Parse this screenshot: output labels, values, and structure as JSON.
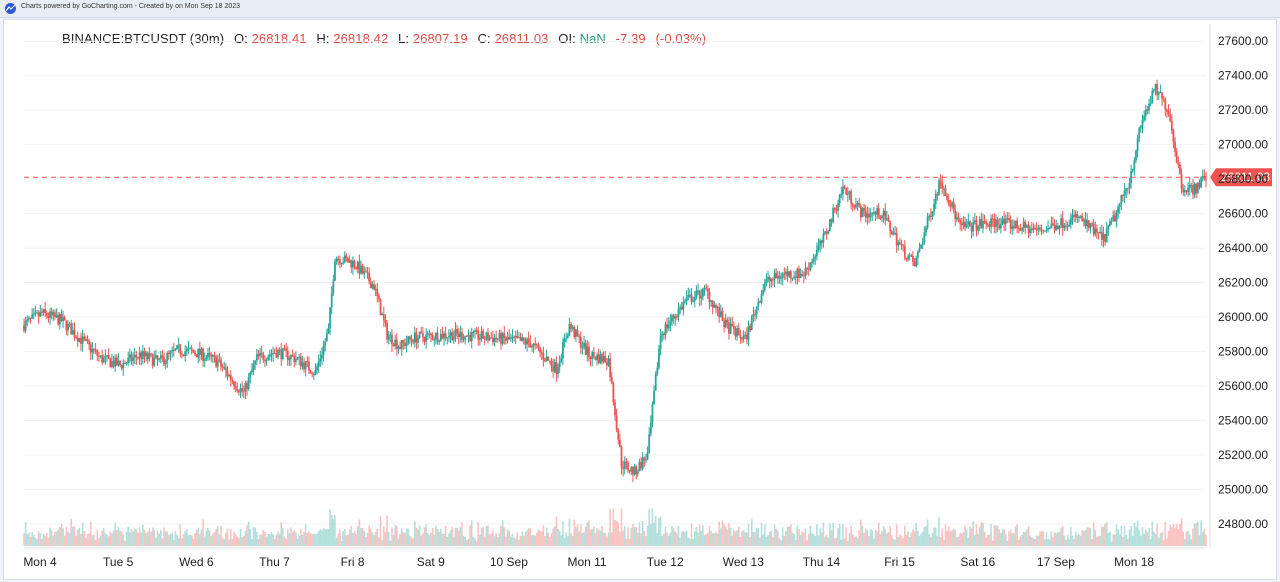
{
  "header": {
    "credit": "Charts powered by GoCharting.com - Created by  on Mon Sep 18 2023"
  },
  "legend": {
    "symbol": "BINANCE:BTCUSDT (30m)",
    "o_label": "O:",
    "o_value": "26818.41",
    "h_label": "H:",
    "h_value": "26818.42",
    "l_label": "L:",
    "l_value": "26807.19",
    "c_label": "C:",
    "c_value": "26811.03",
    "oi_label": "OI:",
    "oi_value": "NaN",
    "change": "-7.39",
    "change_pct": "(-0.03%)"
  },
  "colors": {
    "up": "#26a69a",
    "down": "#ef5350",
    "price_line": "#ef5350",
    "axis_text": "#222222",
    "grid": "#f2f2f2"
  },
  "chart_data": {
    "type": "candlestick",
    "interval": "30m",
    "ylim": [
      24660,
      27700
    ],
    "y_ticks": [
      24800,
      25000,
      25200,
      25400,
      25600,
      25800,
      26000,
      26200,
      26400,
      26600,
      26800,
      27000,
      27200,
      27400,
      27600
    ],
    "y_tick_labels": [
      "24800.00",
      "25000.00",
      "25200.00",
      "25400.00",
      "25600.00",
      "25800.00",
      "26000.00",
      "26200.00",
      "26400.00",
      "26600.00",
      "26800.00",
      "27000.00",
      "27200.00",
      "27400.00",
      "27600.00"
    ],
    "x_start": "2023-09-04 00:00",
    "x_end": "2023-09-19 03:00",
    "x_tick_labels": [
      "Mon 4",
      "Tue 5",
      "Wed 6",
      "Thu 7",
      "Fri 8",
      "Sat 9",
      "10 Sep",
      "Mon 11",
      "Tue 12",
      "Wed 13",
      "Thu 14",
      "Fri 15",
      "Sat 16",
      "17 Sep",
      "Mon 18"
    ],
    "x_tick_dates": [
      "2023-09-04",
      "2023-09-05",
      "2023-09-06",
      "2023-09-07",
      "2023-09-08",
      "2023-09-09",
      "2023-09-10",
      "2023-09-11",
      "2023-09-12",
      "2023-09-13",
      "2023-09-14",
      "2023-09-15",
      "2023-09-16",
      "2023-09-17",
      "2023-09-18"
    ],
    "last_price": 26811.03,
    "last_price_label": "26811.03",
    "price_path": [
      [
        "2023-09-04 00:00",
        25950
      ],
      [
        "2023-09-04 06:00",
        26020
      ],
      [
        "2023-09-04 12:00",
        25980
      ],
      [
        "2023-09-04 18:00",
        25870
      ],
      [
        "2023-09-05 00:00",
        25760
      ],
      [
        "2023-09-05 06:00",
        25720
      ],
      [
        "2023-09-05 12:00",
        25780
      ],
      [
        "2023-09-05 18:00",
        25740
      ],
      [
        "2023-09-06 00:00",
        25810
      ],
      [
        "2023-09-06 06:00",
        25790
      ],
      [
        "2023-09-06 12:00",
        25740
      ],
      [
        "2023-09-06 18:00",
        25600
      ],
      [
        "2023-09-06 20:00",
        25560
      ],
      [
        "2023-09-07 00:00",
        25760
      ],
      [
        "2023-09-07 06:00",
        25800
      ],
      [
        "2023-09-07 12:00",
        25760
      ],
      [
        "2023-09-07 18:00",
        25680
      ],
      [
        "2023-09-07 22:00",
        25920
      ],
      [
        "2023-09-08 00:00",
        26350
      ],
      [
        "2023-09-08 06:00",
        26310
      ],
      [
        "2023-09-08 12:00",
        26180
      ],
      [
        "2023-09-08 16:00",
        25900
      ],
      [
        "2023-09-08 20:00",
        25830
      ],
      [
        "2023-09-09 00:00",
        25880
      ],
      [
        "2023-09-09 12:00",
        25900
      ],
      [
        "2023-09-10 00:00",
        25880
      ],
      [
        "2023-09-10 12:00",
        25850
      ],
      [
        "2023-09-10 20:00",
        25700
      ],
      [
        "2023-09-11 00:00",
        25950
      ],
      [
        "2023-09-11 06:00",
        25780
      ],
      [
        "2023-09-11 12:00",
        25750
      ],
      [
        "2023-09-11 16:00",
        25150
      ],
      [
        "2023-09-11 20:00",
        25100
      ],
      [
        "2023-09-12 00:00",
        25200
      ],
      [
        "2023-09-12 04:00",
        25900
      ],
      [
        "2023-09-12 12:00",
        26100
      ],
      [
        "2023-09-12 18:00",
        26150
      ],
      [
        "2023-09-13 00:00",
        25950
      ],
      [
        "2023-09-13 06:00",
        25870
      ],
      [
        "2023-09-13 12:00",
        26200
      ],
      [
        "2023-09-13 18:00",
        26250
      ],
      [
        "2023-09-14 00:00",
        26250
      ],
      [
        "2023-09-14 06:00",
        26450
      ],
      [
        "2023-09-14 12:00",
        26750
      ],
      [
        "2023-09-14 18:00",
        26600
      ],
      [
        "2023-09-15 00:00",
        26600
      ],
      [
        "2023-09-15 06:00",
        26400
      ],
      [
        "2023-09-15 10:00",
        26300
      ],
      [
        "2023-09-15 18:00",
        26800
      ],
      [
        "2023-09-16 00:00",
        26520
      ],
      [
        "2023-09-16 12:00",
        26550
      ],
      [
        "2023-09-17 00:00",
        26500
      ],
      [
        "2023-09-17 12:00",
        26580
      ],
      [
        "2023-09-17 20:00",
        26450
      ],
      [
        "2023-09-18 00:00",
        26600
      ],
      [
        "2023-09-18 04:00",
        26800
      ],
      [
        "2023-09-18 08:00",
        27150
      ],
      [
        "2023-09-18 12:00",
        27320
      ],
      [
        "2023-09-18 16:00",
        27200
      ],
      [
        "2023-09-18 20:00",
        26760
      ],
      [
        "2023-09-19 00:00",
        26740
      ],
      [
        "2023-09-19 03:00",
        26811
      ]
    ]
  }
}
